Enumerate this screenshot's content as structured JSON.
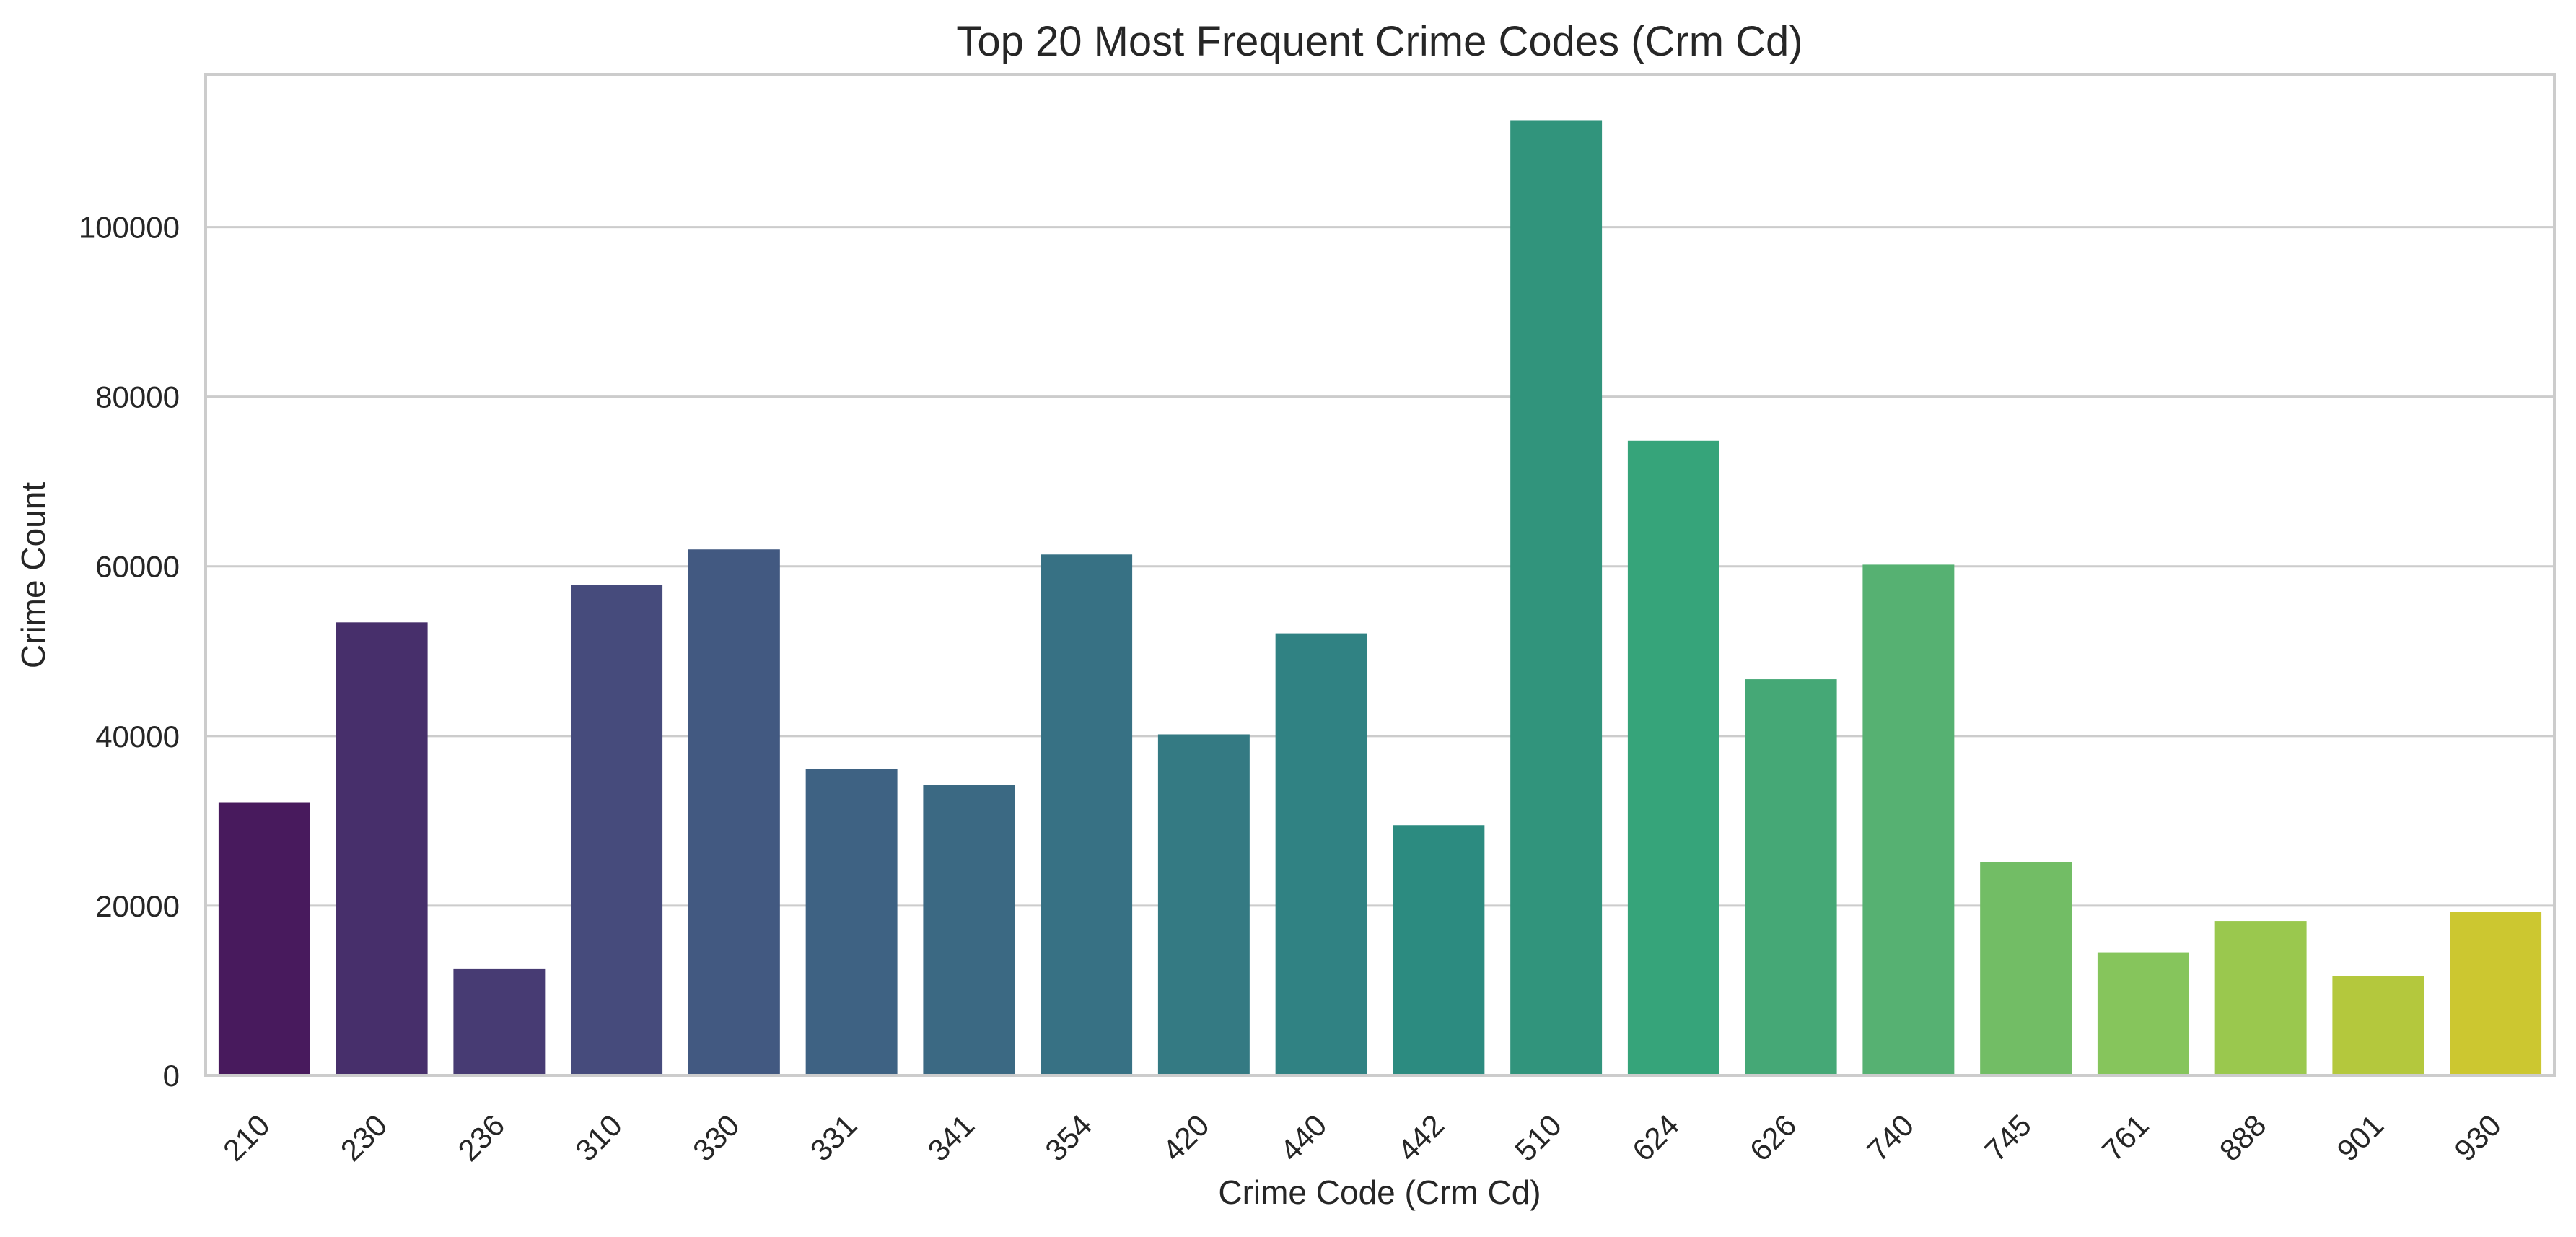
{
  "chart_data": {
    "type": "bar",
    "title": "Top 20 Most Frequent Crime Codes (Crm Cd)",
    "xlabel": "Crime Code (Crm Cd)",
    "ylabel": "Crime Count",
    "categories": [
      "210",
      "230",
      "236",
      "310",
      "330",
      "331",
      "341",
      "354",
      "420",
      "440",
      "442",
      "510",
      "624",
      "626",
      "740",
      "745",
      "761",
      "888",
      "901",
      "930"
    ],
    "values": [
      32200,
      53400,
      12600,
      57800,
      62000,
      36100,
      34200,
      61400,
      40200,
      52100,
      29500,
      112600,
      74800,
      46700,
      60200,
      25100,
      14500,
      18200,
      11700,
      19300
    ],
    "ylim": [
      0,
      118000
    ],
    "yticks": [
      0,
      20000,
      40000,
      60000,
      80000,
      100000
    ],
    "ytick_labels": [
      "0",
      "20000",
      "40000",
      "60000",
      "80000",
      "100000"
    ],
    "grid": "horizontal",
    "palette": [
      "#481a5d",
      "#472f6b",
      "#473b73",
      "#464b7c",
      "#425981",
      "#3e6283",
      "#3b6983",
      "#377184",
      "#347a83",
      "#308283",
      "#2c8b80",
      "#31947c",
      "#36a47a",
      "#45a876",
      "#56b172",
      "#72bd65",
      "#86c55c",
      "#9ac84e",
      "#b4c83d",
      "#ccc730"
    ]
  }
}
